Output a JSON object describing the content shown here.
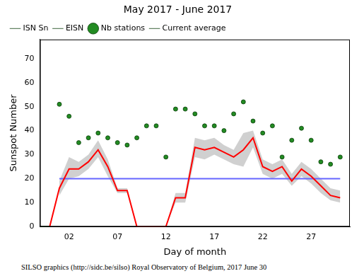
{
  "chart_data": {
    "type": "line",
    "title": "May 2017 - June 2017",
    "x_label": "Day of month",
    "y_label": "Sunspot Number",
    "footer": "SILSO graphics (http://sidc.be/silso) Royal Observatory of Belgium, 2017 June 30",
    "x": [
      -1,
      0,
      1,
      2,
      3,
      4,
      5,
      6,
      7,
      8,
      9,
      10,
      11,
      12,
      13,
      14,
      15,
      16,
      17,
      18,
      19,
      20,
      21,
      22,
      23,
      24,
      25,
      26,
      27,
      28,
      29,
      30
    ],
    "series": [
      {
        "name": "ISN Sn",
        "color": "#006400",
        "marker": "none",
        "line_style": "solid",
        "values": [
          0,
          0,
          null,
          null,
          null,
          null,
          null,
          null,
          null,
          null,
          null,
          null,
          null,
          null,
          null,
          null,
          null,
          null,
          null,
          null,
          null,
          null,
          null,
          null,
          null,
          null,
          null,
          null,
          null,
          null,
          null,
          null
        ]
      },
      {
        "name": "EISN",
        "color": "#ff0000",
        "marker": "none",
        "line_style": "solid",
        "values": [
          null,
          0,
          16,
          24,
          24,
          27,
          32,
          25,
          15,
          15,
          0,
          0,
          0,
          0,
          12,
          12,
          33,
          32,
          33,
          31,
          29,
          32,
          37,
          25,
          23,
          25,
          19,
          24,
          21,
          17,
          13,
          12
        ],
        "lower": [
          null,
          null,
          13,
          20,
          21,
          24,
          29,
          21,
          14,
          14,
          0,
          0,
          0,
          0,
          10,
          10,
          29,
          28,
          30,
          28,
          26,
          25,
          33,
          22,
          20,
          22,
          17,
          21,
          18,
          14,
          11,
          10
        ],
        "upper": [
          null,
          null,
          19,
          29,
          27,
          30,
          36,
          28,
          16,
          16,
          0,
          0,
          0,
          0,
          14,
          14,
          37,
          36,
          37,
          34,
          32,
          39,
          40,
          28,
          26,
          28,
          22,
          27,
          24,
          20,
          16,
          15
        ]
      },
      {
        "name": "Nb stations",
        "color": "#228b22",
        "marker": "circle",
        "line_style": "none",
        "values": [
          null,
          null,
          51,
          46,
          35,
          37,
          39,
          37,
          35,
          34,
          37,
          42,
          42,
          29,
          49,
          49,
          47,
          42,
          42,
          40,
          47,
          52,
          44,
          39,
          42,
          29,
          36,
          41,
          36,
          27,
          26,
          29
        ]
      },
      {
        "name": "Current average",
        "color": "#6666ff",
        "marker": "none",
        "line_style": "solid",
        "values": [
          null,
          null,
          20,
          20,
          20,
          20,
          20,
          20,
          20,
          20,
          20,
          20,
          20,
          20,
          20,
          20,
          20,
          20,
          20,
          20,
          20,
          20,
          20,
          20,
          20,
          20,
          20,
          20,
          20,
          20,
          20,
          20
        ]
      }
    ],
    "xlim": [
      -1,
      31
    ],
    "xticks": [
      {
        "value": 2,
        "label": "02"
      },
      {
        "value": 7,
        "label": "07"
      },
      {
        "value": 12,
        "label": "12"
      },
      {
        "value": 17,
        "label": "17"
      },
      {
        "value": 22,
        "label": "22"
      },
      {
        "value": 27,
        "label": "27"
      }
    ],
    "ylim": [
      0,
      78
    ],
    "yticks": [
      0,
      10,
      20,
      30,
      40,
      50,
      60,
      70
    ],
    "grid": false,
    "legend": "upper left"
  }
}
